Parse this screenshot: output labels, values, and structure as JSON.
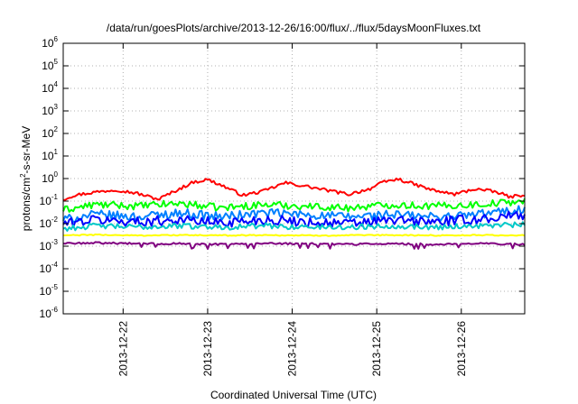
{
  "chart_data": {
    "type": "line",
    "title": "/data/run/goesPlots/archive/2013-12-26/16:00/flux/../flux/5daysMoonFluxes.txt",
    "xlabel": "Coordinated Universal Time (UTC)",
    "ylabel": {
      "prefix": "protons/cm",
      "superscript": "2",
      "suffix": "-s-sr-MeV"
    },
    "y_scale": "log",
    "y_ticks": [
      {
        "base": "10",
        "exp": "-6",
        "value": 1e-06
      },
      {
        "base": "10",
        "exp": "-5",
        "value": 1e-05
      },
      {
        "base": "10",
        "exp": "-4",
        "value": 0.0001
      },
      {
        "base": "10",
        "exp": "-3",
        "value": 0.001
      },
      {
        "base": "10",
        "exp": "-2",
        "value": 0.01
      },
      {
        "base": "10",
        "exp": "-1",
        "value": 0.1
      },
      {
        "base": "10",
        "exp": "0",
        "value": 1
      },
      {
        "base": "10",
        "exp": "1",
        "value": 10
      },
      {
        "base": "10",
        "exp": "2",
        "value": 100
      },
      {
        "base": "10",
        "exp": "3",
        "value": 1000
      },
      {
        "base": "10",
        "exp": "4",
        "value": 10000
      },
      {
        "base": "10",
        "exp": "5",
        "value": 100000
      },
      {
        "base": "10",
        "exp": "6",
        "value": 1000000
      }
    ],
    "ylim": [
      1e-06,
      1000000.0
    ],
    "xlim": [
      "2013-12-21T07:00",
      "2013-12-26T18:00"
    ],
    "x_ticks": [
      "2013-12-22",
      "2013-12-23",
      "2013-12-24",
      "2013-12-25",
      "2013-12-26"
    ],
    "grid": true,
    "legend": "none",
    "series": [
      {
        "color": "#ff0000",
        "x": [
          "2013-12-21T07:00",
          "2013-12-21T10:00",
          "2013-12-21T16:00",
          "2013-12-21T22:00",
          "2013-12-22T04:00",
          "2013-12-22T10:00",
          "2013-12-22T16:00",
          "2013-12-22T20:00",
          "2013-12-23T00:00",
          "2013-12-23T04:00",
          "2013-12-23T10:00",
          "2013-12-23T16:00",
          "2013-12-23T22:00",
          "2013-12-24T04:00",
          "2013-12-24T10:00",
          "2013-12-24T16:00",
          "2013-12-24T22:00",
          "2013-12-25T02:00",
          "2013-12-25T06:00",
          "2013-12-25T10:00",
          "2013-12-25T16:00",
          "2013-12-25T22:00",
          "2013-12-26T04:00",
          "2013-12-26T10:00",
          "2013-12-26T14:00",
          "2013-12-26T18:00"
        ],
        "values": [
          0.12,
          0.18,
          0.25,
          0.32,
          0.22,
          0.12,
          0.35,
          0.7,
          0.9,
          0.5,
          0.18,
          0.28,
          0.65,
          0.45,
          0.3,
          0.2,
          0.35,
          0.7,
          0.95,
          0.6,
          0.3,
          0.2,
          0.35,
          0.25,
          0.15,
          0.2
        ]
      },
      {
        "color": "#00ff00",
        "x": [
          "2013-12-21T07:00",
          "2013-12-21T16:00",
          "2013-12-22T04:00",
          "2013-12-22T16:00",
          "2013-12-23T04:00",
          "2013-12-23T16:00",
          "2013-12-24T04:00",
          "2013-12-24T16:00",
          "2013-12-25T04:00",
          "2013-12-25T16:00",
          "2013-12-26T04:00",
          "2013-12-26T18:00"
        ],
        "values": [
          0.04,
          0.07,
          0.06,
          0.08,
          0.05,
          0.07,
          0.06,
          0.05,
          0.07,
          0.06,
          0.07,
          0.1
        ]
      },
      {
        "color": "#0080ff",
        "x": [
          "2013-12-21T07:00",
          "2013-12-21T16:00",
          "2013-12-22T04:00",
          "2013-12-22T16:00",
          "2013-12-23T04:00",
          "2013-12-23T16:00",
          "2013-12-24T04:00",
          "2013-12-24T16:00",
          "2013-12-25T04:00",
          "2013-12-25T16:00",
          "2013-12-26T04:00",
          "2013-12-26T18:00"
        ],
        "values": [
          0.015,
          0.025,
          0.02,
          0.03,
          0.02,
          0.03,
          0.025,
          0.02,
          0.025,
          0.02,
          0.025,
          0.045
        ]
      },
      {
        "color": "#0000ff",
        "x": [
          "2013-12-21T07:00",
          "2013-12-21T16:00",
          "2013-12-22T04:00",
          "2013-12-22T16:00",
          "2013-12-23T04:00",
          "2013-12-23T16:00",
          "2013-12-24T04:00",
          "2013-12-24T16:00",
          "2013-12-25T04:00",
          "2013-12-25T16:00",
          "2013-12-26T04:00",
          "2013-12-26T18:00"
        ],
        "values": [
          0.01,
          0.015,
          0.012,
          0.015,
          0.011,
          0.015,
          0.012,
          0.01,
          0.014,
          0.012,
          0.015,
          0.025
        ]
      },
      {
        "color": "#00c8c8",
        "x": [
          "2013-12-21T07:00",
          "2013-12-21T16:00",
          "2013-12-22T04:00",
          "2013-12-22T16:00",
          "2013-12-23T04:00",
          "2013-12-23T16:00",
          "2013-12-24T04:00",
          "2013-12-24T16:00",
          "2013-12-25T04:00",
          "2013-12-25T16:00",
          "2013-12-26T04:00",
          "2013-12-26T18:00"
        ],
        "values": [
          0.006,
          0.008,
          0.007,
          0.008,
          0.007,
          0.008,
          0.007,
          0.007,
          0.008,
          0.007,
          0.008,
          0.009
        ]
      },
      {
        "color": "#ffff00",
        "x": [
          "2013-12-21T07:00",
          "2013-12-21T16:00",
          "2013-12-22T04:00",
          "2013-12-22T16:00",
          "2013-12-23T04:00",
          "2013-12-23T16:00",
          "2013-12-24T04:00",
          "2013-12-24T16:00",
          "2013-12-25T04:00",
          "2013-12-25T16:00",
          "2013-12-26T04:00",
          "2013-12-26T18:00"
        ],
        "values": [
          0.003,
          0.0032,
          0.003,
          0.0031,
          0.003,
          0.0031,
          0.003,
          0.003,
          0.0031,
          0.003,
          0.0031,
          0.003
        ]
      },
      {
        "color": "#800080",
        "x": [
          "2013-12-21T07:00",
          "2013-12-21T16:00",
          "2013-12-22T04:00",
          "2013-12-22T16:00",
          "2013-12-23T04:00",
          "2013-12-23T16:00",
          "2013-12-24T04:00",
          "2013-12-24T16:00",
          "2013-12-25T04:00",
          "2013-12-25T16:00",
          "2013-12-26T04:00",
          "2013-12-26T18:00"
        ],
        "values": [
          0.0013,
          0.0014,
          0.0013,
          0.0013,
          0.0012,
          0.0013,
          0.0013,
          0.0012,
          0.0013,
          0.0012,
          0.0013,
          0.0012
        ]
      }
    ]
  }
}
